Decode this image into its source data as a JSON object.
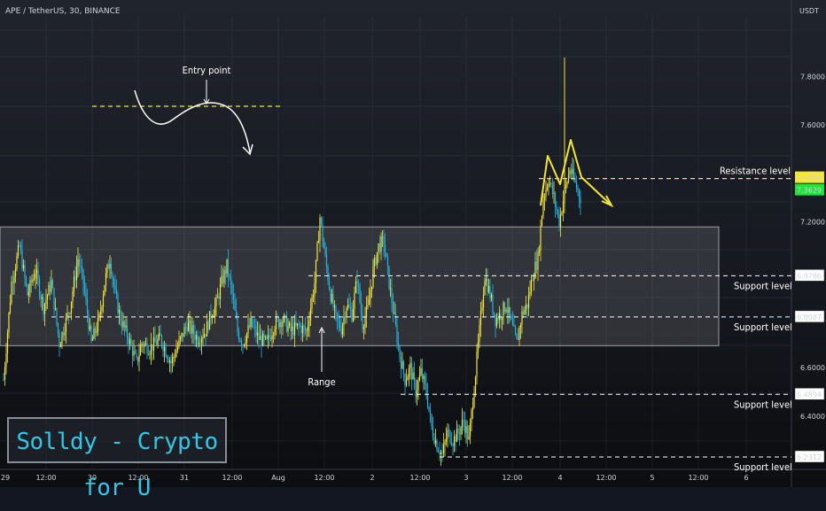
{
  "header": {
    "symbol": "APE / TetherUS, 30, BINANCE",
    "unit": "USDT"
  },
  "watermark": "Solldy - Crypto for U",
  "colors": {
    "up": "#f3e53a",
    "down": "#27b5e0",
    "resistance": "#f3e53a",
    "support": "#ffffff",
    "range_fill": "#ffffff"
  },
  "chart_data": {
    "type": "candlestick",
    "title": "",
    "ylim": [
      6.18,
      8.05
    ],
    "y_ticks": [
      "7.8000",
      "7.6000",
      "7.2000",
      "6.6000",
      "6.4000"
    ],
    "x_ticks": [
      "29",
      "12:00",
      "30",
      "12:00",
      "31",
      "12:00",
      "Aug",
      "12:00",
      "2",
      "12:00",
      "3",
      "12:00",
      "4",
      "12:00",
      "5",
      "12:00",
      "6"
    ],
    "resistance_level": {
      "label": "Resistance level",
      "price": "7.3794",
      "secondary_price": "7.3629",
      "value": 7.3794
    },
    "support_levels": [
      {
        "label": "Support level",
        "price": "6.9786",
        "value": 6.9786
      },
      {
        "label": "Support level",
        "price": "6.8087",
        "value": 6.8087
      },
      {
        "label": "Support level",
        "price": "6.4894",
        "value": 6.4894
      },
      {
        "label": "Support level",
        "price": "6.2312",
        "value": 6.2312
      }
    ],
    "range_zone": {
      "label": "Range",
      "top": 7.18,
      "bottom": 6.69
    },
    "annotations": {
      "entry_point": "Entry point",
      "range": "Range"
    },
    "price_path": [
      [
        0,
        6.55
      ],
      [
        6,
        6.95
      ],
      [
        12,
        7.1
      ],
      [
        18,
        6.9
      ],
      [
        24,
        7.0
      ],
      [
        30,
        6.85
      ],
      [
        36,
        6.95
      ],
      [
        42,
        6.7
      ],
      [
        50,
        6.85
      ],
      [
        56,
        7.05
      ],
      [
        60,
        6.95
      ],
      [
        66,
        6.7
      ],
      [
        72,
        6.8
      ],
      [
        76,
        6.95
      ],
      [
        80,
        7.05
      ],
      [
        84,
        6.9
      ],
      [
        88,
        6.8
      ],
      [
        94,
        6.72
      ],
      [
        100,
        6.62
      ],
      [
        104,
        6.7
      ],
      [
        110,
        6.68
      ],
      [
        118,
        6.72
      ],
      [
        126,
        6.62
      ],
      [
        132,
        6.7
      ],
      [
        138,
        6.78
      ],
      [
        146,
        6.72
      ],
      [
        152,
        6.75
      ],
      [
        156,
        6.82
      ],
      [
        160,
        6.86
      ],
      [
        164,
        6.95
      ],
      [
        168,
        7.02
      ],
      [
        172,
        6.9
      ],
      [
        176,
        6.75
      ],
      [
        180,
        6.7
      ],
      [
        186,
        6.78
      ],
      [
        192,
        6.72
      ],
      [
        198,
        6.7
      ],
      [
        204,
        6.78
      ],
      [
        210,
        6.8
      ],
      [
        216,
        6.75
      ],
      [
        222,
        6.77
      ],
      [
        228,
        6.75
      ],
      [
        234,
        6.95
      ],
      [
        238,
        7.22
      ],
      [
        242,
        7.05
      ],
      [
        246,
        6.9
      ],
      [
        250,
        6.8
      ],
      [
        254,
        6.76
      ],
      [
        258,
        6.86
      ],
      [
        262,
        6.82
      ],
      [
        266,
        6.97
      ],
      [
        270,
        6.78
      ],
      [
        274,
        6.84
      ],
      [
        278,
        7.0
      ],
      [
        282,
        7.1
      ],
      [
        286,
        7.12
      ],
      [
        290,
        6.95
      ],
      [
        294,
        6.8
      ],
      [
        298,
        6.65
      ],
      [
        302,
        6.55
      ],
      [
        306,
        6.6
      ],
      [
        310,
        6.5
      ],
      [
        314,
        6.58
      ],
      [
        318,
        6.5
      ],
      [
        322,
        6.35
      ],
      [
        326,
        6.28
      ],
      [
        330,
        6.24
      ],
      [
        334,
        6.33
      ],
      [
        338,
        6.3
      ],
      [
        342,
        6.33
      ],
      [
        346,
        6.38
      ],
      [
        350,
        6.3
      ],
      [
        354,
        6.52
      ],
      [
        358,
        6.75
      ],
      [
        362,
        6.98
      ],
      [
        366,
        6.9
      ],
      [
        370,
        6.8
      ],
      [
        374,
        6.82
      ],
      [
        378,
        6.86
      ],
      [
        382,
        6.78
      ],
      [
        386,
        6.7
      ],
      [
        390,
        6.82
      ],
      [
        394,
        6.86
      ],
      [
        398,
        6.98
      ],
      [
        402,
        7.05
      ],
      [
        406,
        7.3
      ],
      [
        410,
        7.38
      ],
      [
        414,
        7.3
      ],
      [
        418,
        7.2
      ],
      [
        422,
        7.32
      ],
      [
        426,
        7.42
      ],
      [
        430,
        7.36
      ],
      [
        434,
        7.3
      ]
    ]
  }
}
